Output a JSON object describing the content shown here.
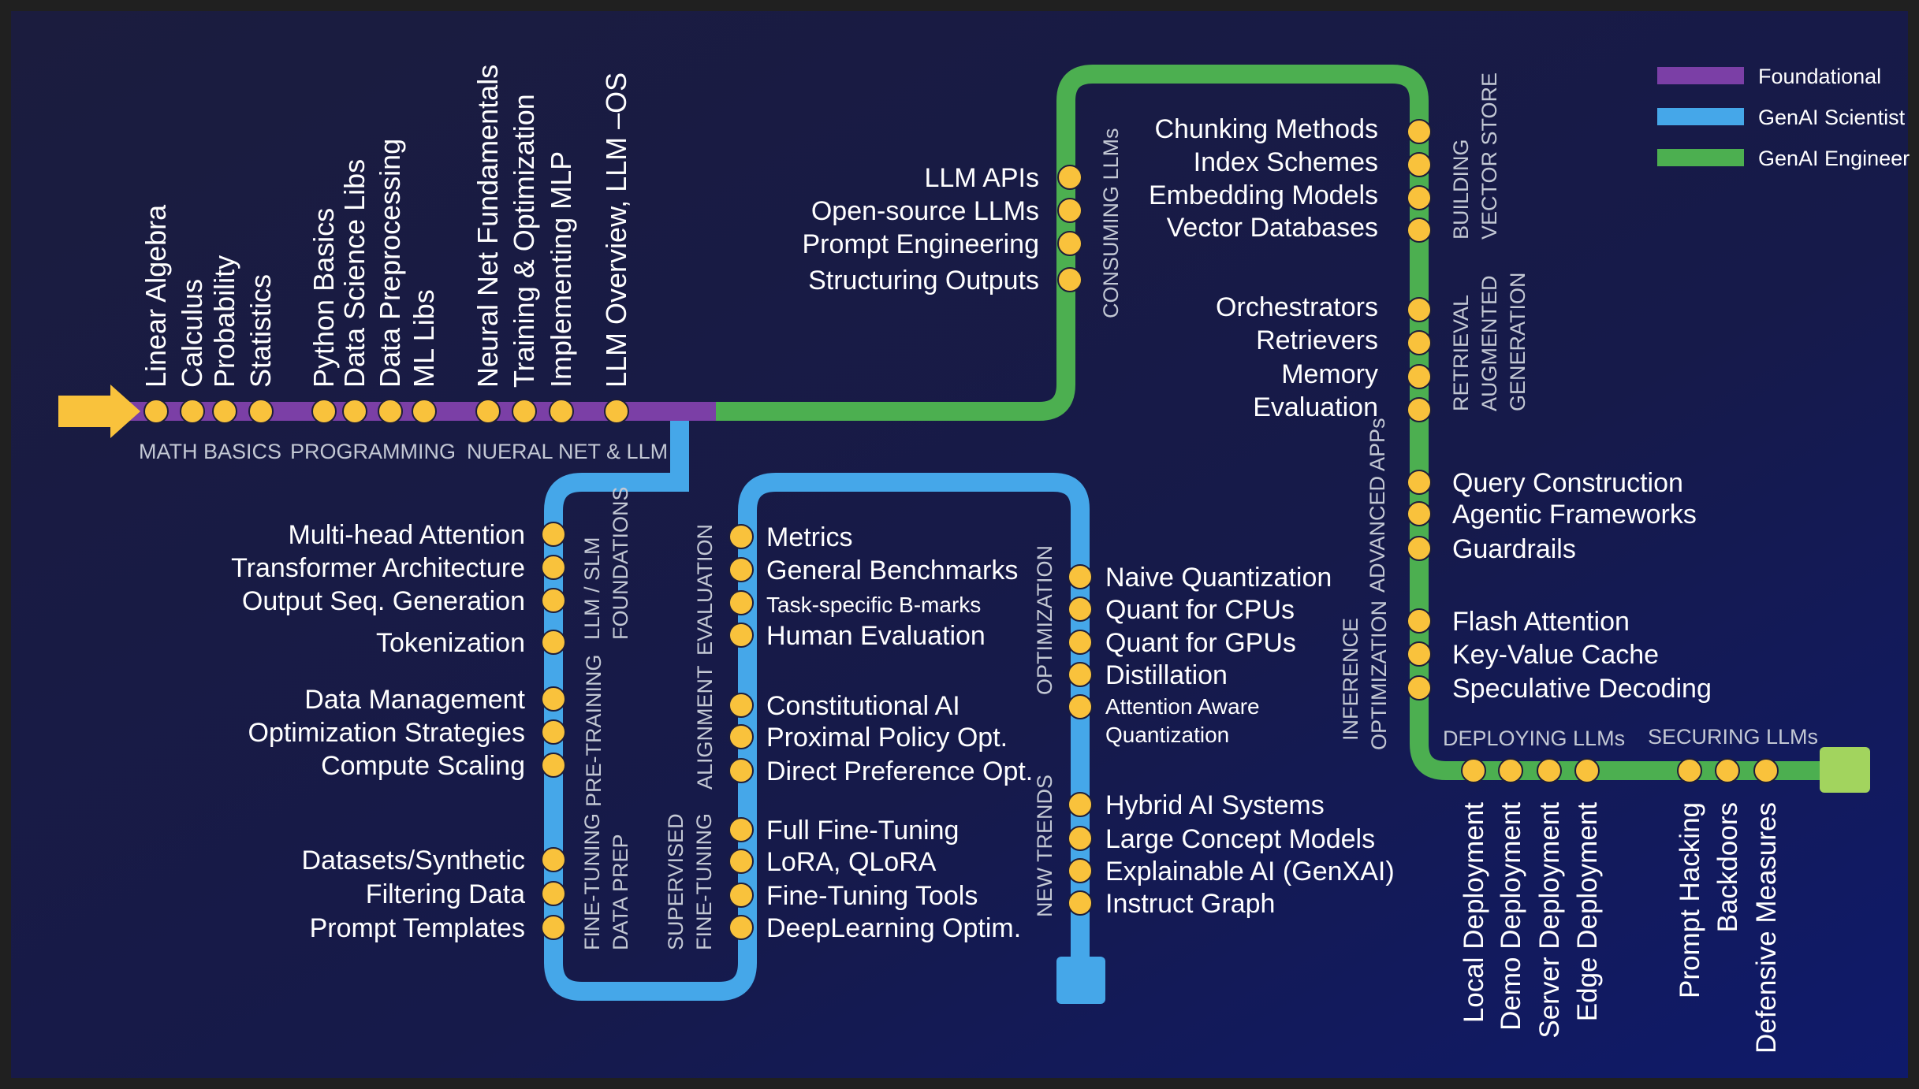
{
  "colors": {
    "foundational": "#7b3fa6",
    "scientist": "#45a7e9",
    "engineer": "#4caf50",
    "station": "#f9c23c",
    "arrow": "#f9c23c",
    "end_engineer": "#a2d45e",
    "end_scientist": "#45a7e9",
    "text": "#ffffff",
    "section_text": "#c3c8d4"
  },
  "legend": [
    {
      "label": "Foundational",
      "color": "#7b3fa6"
    },
    {
      "label": "GenAI Scientist",
      "color": "#45a7e9"
    },
    {
      "label": "GenAI Engineer",
      "color": "#4caf50"
    }
  ],
  "foundational": {
    "sections": [
      "MATH BASICS",
      "PROGRAMMING",
      "NUERAL NET & LLM"
    ],
    "topics": [
      "Linear Algebra",
      "Calculus",
      "Probability",
      "Statistics",
      "Python Basics",
      "Data Science Libs",
      "Data Preprocessing",
      "ML Libs",
      "Neural Net Fundamentals",
      "Training & Optimization",
      "Implementing MLP",
      "LLM Overview, LLM –OS"
    ]
  },
  "scientist": {
    "sections": [
      "LLM / SLM",
      "FOUNDATIONS",
      "PRE-TRAINING",
      "FINE-TUNING",
      "DATA PREP",
      "EVALUATION",
      "ALIGNMENT",
      "SUPERVISED",
      "FINE-TUNING",
      "OPTIMIZATION",
      "NEW TRENDS"
    ],
    "topics": [
      "Multi-head Attention",
      "Transformer Architecture",
      "Output Seq. Generation",
      "Tokenization",
      "Data Management",
      "Optimization Strategies",
      "Compute Scaling",
      "Datasets/Synthetic",
      "Filtering Data",
      "Prompt Templates",
      "Metrics",
      "General Benchmarks",
      "Task-specific B-marks",
      "Human Evaluation",
      "Constitutional AI",
      "Proximal Policy Opt.",
      "Direct Preference Opt.",
      "Full Fine-Tuning",
      "LoRA, QLoRA",
      "Fine-Tuning Tools",
      "DeepLearning Optim.",
      "Naive Quantization",
      "Quant for CPUs",
      "Quant for GPUs",
      "Distillation",
      "Attention Aware",
      "Quantization",
      "Hybrid AI Systems",
      "Large Concept Models",
      "Explainable AI (GenXAI)",
      "Instruct Graph"
    ]
  },
  "engineer": {
    "sections": [
      "CONSUMING  LLMs",
      "BUILDING",
      "VECTOR STORE",
      "RETRIEVAL",
      "AUGMENTED",
      "GENERATION",
      "ADVANCED  APPs",
      "INFERENCE",
      "OPTIMIZATION",
      "DEPLOYING LLMs",
      "SECURING LLMs"
    ],
    "topics": [
      "LLM APIs",
      "Open-source LLMs",
      "Prompt Engineering",
      "Structuring Outputs",
      "Chunking Methods",
      "Index Schemes",
      "Embedding Models",
      "Vector Databases",
      "Orchestrators",
      "Retrievers",
      "Memory",
      "Evaluation",
      "Query Construction",
      "Agentic Frameworks",
      "Guardrails",
      "Flash Attention",
      "Key-Value Cache",
      "Speculative Decoding",
      "Local Deployment",
      "Demo Deployment",
      "Server Deployment",
      "Edge Deployment",
      "Prompt Hacking",
      "Backdoors",
      "Defensive Measures"
    ]
  }
}
